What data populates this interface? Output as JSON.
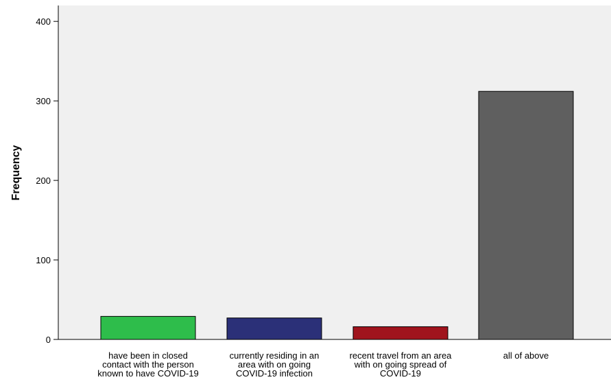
{
  "chart_data": {
    "type": "bar",
    "title": "",
    "xlabel": "",
    "ylabel": "Frequency",
    "ylim": [
      0,
      420
    ],
    "yticks": [
      0,
      100,
      200,
      300,
      400
    ],
    "grid": false,
    "legend": "none",
    "categories": [
      [
        "have been in closed",
        "contact with the person",
        "known to have COVID-19"
      ],
      [
        "currently residing in an",
        "area with on going",
        "COVID-19 infection"
      ],
      [
        "recent travel from an area",
        "with on going spread of",
        "COVID-19"
      ],
      [
        "all of above"
      ]
    ],
    "values": [
      29,
      27,
      16,
      312
    ],
    "colors": [
      "#2EBD4B",
      "#2B3078",
      "#A0141D",
      "#5F5F5F"
    ]
  },
  "style": {
    "plot_background": "#F0F0F0",
    "axis_color": "#000000"
  }
}
